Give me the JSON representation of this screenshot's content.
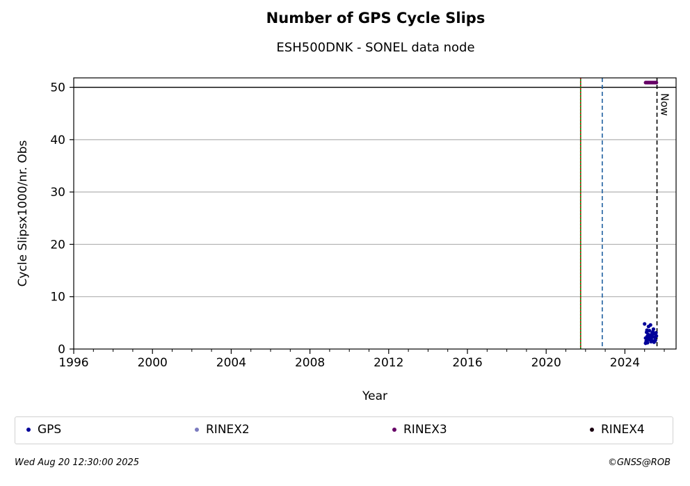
{
  "chart_data": {
    "type": "scatter",
    "title": "Number of GPS Cycle Slips",
    "subtitle": "ESH500DNK - SONEL data node",
    "xlabel": "Year",
    "ylabel": "Cycle Slipsx1000/nr. Obs",
    "xlim": [
      1996,
      2026.6
    ],
    "ylim": [
      0,
      51.8
    ],
    "x_ticks": [
      "1996",
      "2000",
      "2004",
      "2008",
      "2012",
      "2016",
      "2020",
      "2024"
    ],
    "y_ticks": [
      "0",
      "10",
      "20",
      "30",
      "40",
      "50"
    ],
    "grid": "y",
    "legend_position": "bottom",
    "reference_lines": [
      {
        "x": 2021.75,
        "style": "solid",
        "color": "#008000"
      },
      {
        "x": 2021.75,
        "style": "dotted",
        "color": "#cc0000"
      },
      {
        "x": 2022.85,
        "style": "dashed",
        "color": "#1f5fa0"
      },
      {
        "x": 2025.63,
        "style": "dashed",
        "color": "#000000",
        "label": "Now"
      }
    ],
    "threshold_line": {
      "y": 50,
      "color": "#000000"
    },
    "series": [
      {
        "name": "GPS",
        "color": "#000099",
        "x": [
          2025.0,
          2025.05,
          2025.08,
          2025.1,
          2025.13,
          2025.15,
          2025.18,
          2025.2,
          2025.23,
          2025.25,
          2025.28,
          2025.3,
          2025.33,
          2025.35,
          2025.38,
          2025.4,
          2025.43,
          2025.45,
          2025.48,
          2025.5,
          2025.53,
          2025.55,
          2025.58,
          2025.6,
          2025.05,
          2025.12,
          2025.22,
          2025.32,
          2025.42,
          2025.52,
          2025.17,
          2025.27
        ],
        "y": [
          4.8,
          2.1,
          1.5,
          3.2,
          2.4,
          1.2,
          2.8,
          4.3,
          1.8,
          3.5,
          2.0,
          4.6,
          1.4,
          2.6,
          3.0,
          1.6,
          2.3,
          3.8,
          1.3,
          2.9,
          2.2,
          1.7,
          3.1,
          2.5,
          1.1,
          3.6,
          2.7,
          1.9,
          3.3,
          1.5,
          2.0,
          2.4
        ]
      },
      {
        "name": "RINEX2",
        "color": "#7b7bbf",
        "x": [],
        "y": []
      },
      {
        "name": "RINEX3",
        "color": "#660066",
        "x": [
          2025.05,
          2025.1,
          2025.15,
          2025.2,
          2025.25,
          2025.3,
          2025.35,
          2025.4,
          2025.45,
          2025.5,
          2025.55,
          2025.6
        ],
        "y": [
          50.9,
          50.9,
          50.9,
          50.9,
          50.9,
          50.9,
          50.9,
          50.9,
          50.9,
          50.9,
          50.9,
          50.9
        ]
      },
      {
        "name": "RINEX4",
        "color": "#1a0010",
        "x": [],
        "y": []
      }
    ],
    "footer_left": "Wed Aug 20 12:30:00 2025",
    "footer_right": "©GNSS@ROB"
  }
}
